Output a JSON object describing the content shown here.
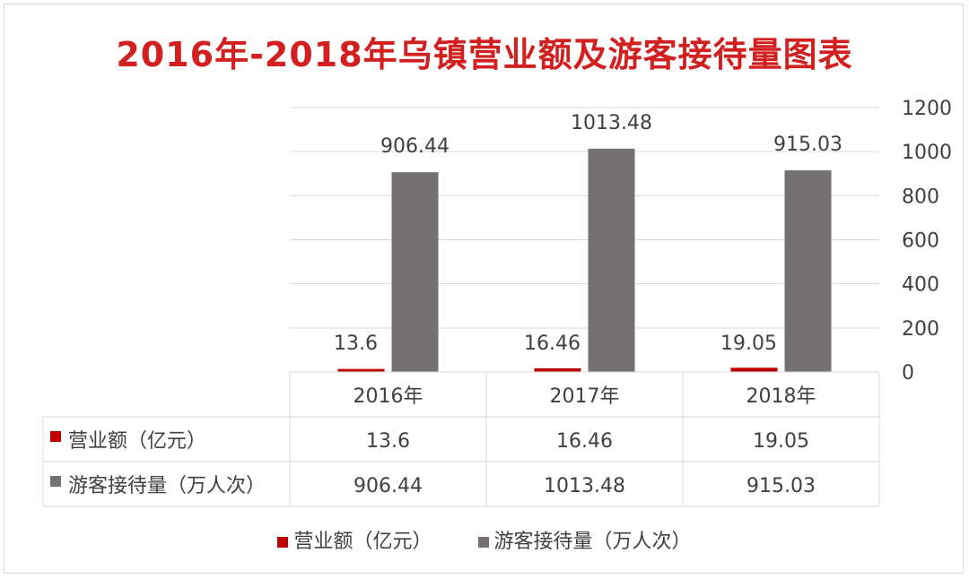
{
  "chart_data": {
    "type": "bar",
    "title": "2016年-2018年乌镇营业额及游客接待量图表",
    "categories": [
      "2016年",
      "2017年",
      "2018年"
    ],
    "series": [
      {
        "name": "营业额（亿元）",
        "values": [
          13.6,
          16.46,
          19.05
        ],
        "color": "#c00000",
        "labels": [
          "13.6",
          "16.46",
          "19.05"
        ]
      },
      {
        "name": "游客接待量（万人次）",
        "values": [
          906.44,
          1013.48,
          915.03
        ],
        "color": "#767171",
        "labels": [
          "906.44",
          "1013.48",
          "915.03"
        ]
      }
    ],
    "ylim": [
      0,
      1200
    ],
    "yticks": [
      "0",
      "200",
      "400",
      "600",
      "800",
      "1000",
      "1200"
    ],
    "grid": true,
    "y_axis_side": "right",
    "data_table": true,
    "legend_position": "bottom"
  }
}
